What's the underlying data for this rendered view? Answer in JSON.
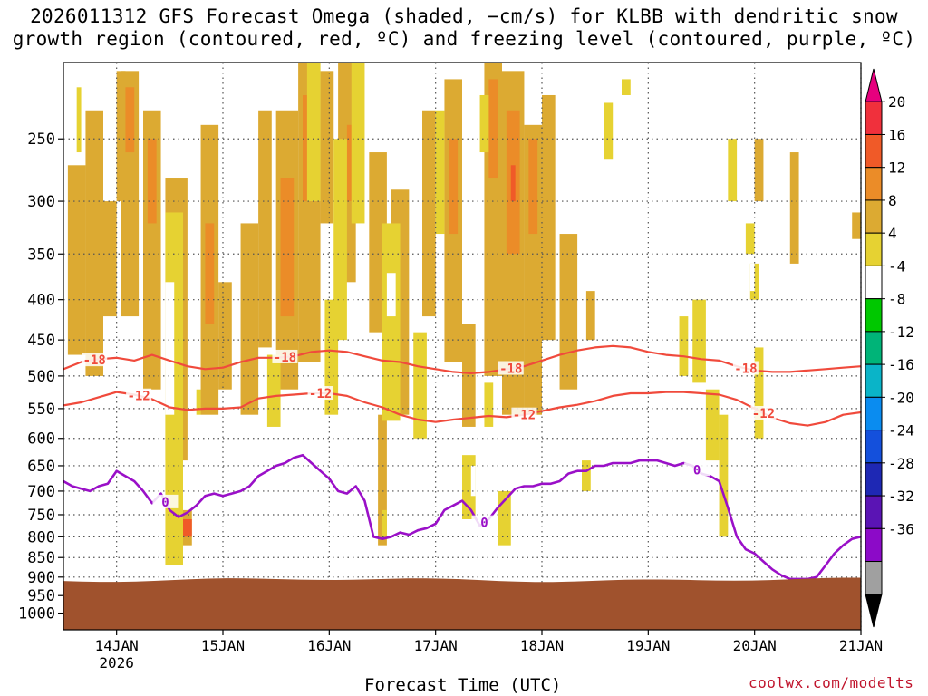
{
  "title": {
    "line1": "2026011312 GFS Forecast Omega (shaded, −cm/s) for KLBB with dendritic snow",
    "line2": "growth region (contoured, red, ºC) and freezing level (contoured, purple, ºC)"
  },
  "xlabel": "Forecast Time (UTC)",
  "credit": "coolwx.com/modelts",
  "colors": {
    "terrain": "#a0522d",
    "dsgz_contour": "#f04a3c",
    "freezing_contour": "#9a10c8",
    "grid": "#555555"
  },
  "chart_data": {
    "type": "heatmap",
    "title": "2026011312 GFS Forecast Omega (shaded, −cm/s) for KLBB with dendritic snow growth region (contoured, red, ºC) and freezing level (contoured, purple, ºC)",
    "xlabel": "Forecast Time (UTC)",
    "ylabel": "",
    "x_unit": "hours from 2026-01-13 12 UTC",
    "xlim": [
      0,
      180
    ],
    "y_scale": "log pressure (hPa), inverted",
    "ylim": [
      1050,
      200
    ],
    "x_ticks": [
      {
        "label": "14JAN",
        "sublabel": "2026",
        "x": 12
      },
      {
        "label": "15JAN",
        "sublabel": "",
        "x": 36
      },
      {
        "label": "16JAN",
        "sublabel": "",
        "x": 60
      },
      {
        "label": "17JAN",
        "sublabel": "",
        "x": 84
      },
      {
        "label": "18JAN",
        "sublabel": "",
        "x": 108
      },
      {
        "label": "19JAN",
        "sublabel": "",
        "x": 132
      },
      {
        "label": "20JAN",
        "sublabel": "",
        "x": 156
      },
      {
        "label": "21JAN",
        "sublabel": "",
        "x": 180
      }
    ],
    "y_ticks": [
      250,
      300,
      350,
      400,
      450,
      500,
      550,
      600,
      650,
      700,
      750,
      800,
      850,
      900,
      950,
      1000
    ],
    "grid": true,
    "colorbar": {
      "labels": [
        "20",
        "16",
        "12",
        "8",
        "4",
        "-4",
        "-8",
        "-12",
        "-16",
        "-20",
        "-24",
        "-28",
        "-32",
        "-36"
      ],
      "colors": [
        "#e6007e",
        "#f0303c",
        "#f05a28",
        "#eb8c28",
        "#dcaa32",
        "#e6d232",
        "#ffffff",
        "#00c800",
        "#00b478",
        "#0ab4c8",
        "#0a8cf0",
        "#1450dc",
        "#1e28b4",
        "#5a14b4",
        "#8c0ac8",
        "#a0a0a0",
        "#000000"
      ]
    },
    "surface_pressure_hpa": 905,
    "omega_cells": [
      {
        "x0": 1,
        "x1": 5,
        "p0": 270,
        "p1": 470,
        "c": 4
      },
      {
        "x0": 5,
        "x1": 9,
        "p0": 230,
        "p1": 500,
        "c": 4
      },
      {
        "x0": 9,
        "x1": 12,
        "p0": 300,
        "p1": 420,
        "c": 4
      },
      {
        "x0": 12,
        "x1": 14,
        "p0": 205,
        "p1": 300,
        "c": 4
      },
      {
        "x0": 13,
        "x1": 17,
        "p0": 205,
        "p1": 420,
        "c": 4
      },
      {
        "x0": 14,
        "x1": 16,
        "p0": 215,
        "p1": 260,
        "c": 3
      },
      {
        "x0": 18,
        "x1": 22,
        "p0": 230,
        "p1": 520,
        "c": 4
      },
      {
        "x0": 19,
        "x1": 21,
        "p0": 250,
        "p1": 320,
        "c": 3
      },
      {
        "x0": 23,
        "x1": 28,
        "p0": 280,
        "p1": 640,
        "c": 4
      },
      {
        "x0": 24,
        "x1": 27,
        "p0": 330,
        "p1": 450,
        "c": 3
      },
      {
        "x0": 27,
        "x1": 29,
        "p0": 740,
        "p1": 820,
        "c": 4
      },
      {
        "x0": 26,
        "x1": 29,
        "p0": 760,
        "p1": 800,
        "c": 2
      },
      {
        "x0": 31,
        "x1": 35,
        "p0": 240,
        "p1": 560,
        "c": 4
      },
      {
        "x0": 32,
        "x1": 34,
        "p0": 320,
        "p1": 430,
        "c": 3
      },
      {
        "x0": 35,
        "x1": 38,
        "p0": 380,
        "p1": 520,
        "c": 4
      },
      {
        "x0": 40,
        "x1": 44,
        "p0": 320,
        "p1": 560,
        "c": 4
      },
      {
        "x0": 44,
        "x1": 47,
        "p0": 230,
        "p1": 460,
        "c": 4
      },
      {
        "x0": 48,
        "x1": 53,
        "p0": 230,
        "p1": 520,
        "c": 4
      },
      {
        "x0": 49,
        "x1": 52,
        "p0": 280,
        "p1": 420,
        "c": 3
      },
      {
        "x0": 53,
        "x1": 58,
        "p0": 200,
        "p1": 480,
        "c": 4
      },
      {
        "x0": 54,
        "x1": 57,
        "p0": 220,
        "p1": 300,
        "c": 3
      },
      {
        "x0": 58,
        "x1": 61,
        "p0": 205,
        "p1": 320,
        "c": 4
      },
      {
        "x0": 62,
        "x1": 66,
        "p0": 200,
        "p1": 380,
        "c": 4
      },
      {
        "x0": 64,
        "x1": 65,
        "p0": 240,
        "p1": 300,
        "c": 3
      },
      {
        "x0": 69,
        "x1": 73,
        "p0": 260,
        "p1": 440,
        "c": 4
      },
      {
        "x0": 71,
        "x1": 73,
        "p0": 560,
        "p1": 820,
        "c": 4
      },
      {
        "x0": 74,
        "x1": 78,
        "p0": 290,
        "p1": 560,
        "c": 4
      },
      {
        "x0": 81,
        "x1": 84,
        "p0": 230,
        "p1": 420,
        "c": 4
      },
      {
        "x0": 86,
        "x1": 90,
        "p0": 210,
        "p1": 480,
        "c": 4
      },
      {
        "x0": 87,
        "x1": 89,
        "p0": 250,
        "p1": 330,
        "c": 3
      },
      {
        "x0": 90,
        "x1": 93,
        "p0": 430,
        "p1": 580,
        "c": 4
      },
      {
        "x0": 95,
        "x1": 99,
        "p0": 200,
        "p1": 500,
        "c": 4
      },
      {
        "x0": 96,
        "x1": 98,
        "p0": 210,
        "p1": 280,
        "c": 3
      },
      {
        "x0": 99,
        "x1": 104,
        "p0": 205,
        "p1": 560,
        "c": 4
      },
      {
        "x0": 100,
        "x1": 103,
        "p0": 230,
        "p1": 350,
        "c": 3
      },
      {
        "x0": 101,
        "x1": 102,
        "p0": 270,
        "p1": 300,
        "c": 2
      },
      {
        "x0": 104,
        "x1": 108,
        "p0": 240,
        "p1": 560,
        "c": 4
      },
      {
        "x0": 105,
        "x1": 107,
        "p0": 250,
        "p1": 330,
        "c": 3
      },
      {
        "x0": 108,
        "x1": 111,
        "p0": 220,
        "p1": 450,
        "c": 4
      },
      {
        "x0": 112,
        "x1": 116,
        "p0": 330,
        "p1": 520,
        "c": 4
      },
      {
        "x0": 118,
        "x1": 120,
        "p0": 390,
        "p1": 450,
        "c": 4
      },
      {
        "x0": 156,
        "x1": 158,
        "p0": 250,
        "p1": 300,
        "c": 4
      },
      {
        "x0": 164,
        "x1": 166,
        "p0": 260,
        "p1": 360,
        "c": 4
      },
      {
        "x0": 178,
        "x1": 180,
        "p0": 310,
        "p1": 335,
        "c": 4
      },
      {
        "x0": 3,
        "x1": 4,
        "p0": 215,
        "p1": 260,
        "c": 5
      },
      {
        "x0": 23,
        "x1": 27,
        "p0": 310,
        "p1": 870,
        "c": 5
      },
      {
        "x0": 23,
        "x1": 25,
        "p0": 380,
        "p1": 560,
        "c": 6
      },
      {
        "x0": 30,
        "x1": 31,
        "p0": 520,
        "p1": 560,
        "c": 5
      },
      {
        "x0": 46,
        "x1": 49,
        "p0": 470,
        "p1": 580,
        "c": 5
      },
      {
        "x0": 55,
        "x1": 58,
        "p0": 200,
        "p1": 300,
        "c": 5
      },
      {
        "x0": 59,
        "x1": 62,
        "p0": 400,
        "p1": 560,
        "c": 5
      },
      {
        "x0": 61,
        "x1": 64,
        "p0": 250,
        "p1": 450,
        "c": 5
      },
      {
        "x0": 65,
        "x1": 68,
        "p0": 200,
        "p1": 320,
        "c": 5
      },
      {
        "x0": 72,
        "x1": 76,
        "p0": 320,
        "p1": 570,
        "c": 5
      },
      {
        "x0": 73,
        "x1": 75,
        "p0": 370,
        "p1": 420,
        "c": 6
      },
      {
        "x0": 72,
        "x1": 73,
        "p0": 740,
        "p1": 800,
        "c": 5
      },
      {
        "x0": 79,
        "x1": 82,
        "p0": 440,
        "p1": 600,
        "c": 5
      },
      {
        "x0": 84,
        "x1": 86,
        "p0": 230,
        "p1": 330,
        "c": 5
      },
      {
        "x0": 90,
        "x1": 93,
        "p0": 630,
        "p1": 760,
        "c": 5
      },
      {
        "x0": 92,
        "x1": 93,
        "p0": 650,
        "p1": 710,
        "c": 6
      },
      {
        "x0": 94,
        "x1": 96,
        "p0": 220,
        "p1": 260,
        "c": 5
      },
      {
        "x0": 95,
        "x1": 97,
        "p0": 510,
        "p1": 580,
        "c": 5
      },
      {
        "x0": 98,
        "x1": 101,
        "p0": 700,
        "p1": 820,
        "c": 5
      },
      {
        "x0": 117,
        "x1": 119,
        "p0": 640,
        "p1": 700,
        "c": 5
      },
      {
        "x0": 122,
        "x1": 124,
        "p0": 225,
        "p1": 265,
        "c": 5
      },
      {
        "x0": 126,
        "x1": 128,
        "p0": 210,
        "p1": 220,
        "c": 5
      },
      {
        "x0": 139,
        "x1": 141,
        "p0": 420,
        "p1": 500,
        "c": 5
      },
      {
        "x0": 142,
        "x1": 145,
        "p0": 400,
        "p1": 510,
        "c": 5
      },
      {
        "x0": 145,
        "x1": 148,
        "p0": 520,
        "p1": 640,
        "c": 5
      },
      {
        "x0": 148,
        "x1": 150,
        "p0": 560,
        "p1": 800,
        "c": 5
      },
      {
        "x0": 150,
        "x1": 152,
        "p0": 250,
        "p1": 300,
        "c": 5
      },
      {
        "x0": 154,
        "x1": 156,
        "p0": 320,
        "p1": 350,
        "c": 5
      },
      {
        "x0": 155,
        "x1": 157,
        "p0": 360,
        "p1": 400,
        "c": 5
      },
      {
        "x0": 155,
        "x1": 156,
        "p0": 360,
        "p1": 390,
        "c": 6
      },
      {
        "x0": 156,
        "x1": 158,
        "p0": 460,
        "p1": 600,
        "c": 5
      }
    ],
    "series": [
      {
        "name": "-18",
        "role": "dendritic snow growth region",
        "label_x": [
          7,
          50,
          101,
          154
        ],
        "x": [
          0,
          4,
          8,
          12,
          16,
          20,
          24,
          28,
          32,
          36,
          40,
          44,
          48,
          52,
          56,
          60,
          64,
          68,
          72,
          76,
          80,
          84,
          88,
          92,
          96,
          100,
          104,
          108,
          112,
          116,
          120,
          124,
          128,
          132,
          136,
          140,
          144,
          148,
          152,
          156,
          160,
          164,
          168,
          172,
          176,
          180
        ],
        "p": [
          490,
          480,
          476,
          474,
          478,
          470,
          478,
          486,
          490,
          488,
          480,
          474,
          474,
          472,
          466,
          464,
          466,
          472,
          478,
          480,
          486,
          490,
          494,
          496,
          494,
          490,
          486,
          478,
          470,
          464,
          460,
          458,
          460,
          466,
          470,
          472,
          476,
          478,
          486,
          492,
          494,
          494,
          492,
          490,
          488,
          486
        ]
      },
      {
        "name": "-12",
        "role": "dendritic snow growth region",
        "label_x": [
          17,
          58,
          104,
          158
        ],
        "x": [
          0,
          4,
          8,
          12,
          16,
          20,
          24,
          28,
          32,
          36,
          40,
          44,
          48,
          52,
          56,
          60,
          64,
          68,
          72,
          76,
          80,
          84,
          88,
          92,
          96,
          100,
          104,
          108,
          112,
          116,
          120,
          124,
          128,
          132,
          136,
          140,
          144,
          148,
          152,
          156,
          160,
          164,
          168,
          172,
          176,
          180
        ],
        "p": [
          545,
          540,
          532,
          524,
          528,
          535,
          548,
          552,
          550,
          550,
          548,
          534,
          530,
          528,
          526,
          526,
          530,
          540,
          548,
          560,
          568,
          572,
          568,
          565,
          562,
          564,
          560,
          554,
          548,
          544,
          538,
          530,
          526,
          526,
          524,
          524,
          526,
          528,
          536,
          550,
          565,
          574,
          578,
          572,
          560,
          556
        ]
      },
      {
        "name": "0",
        "role": "freezing level",
        "label_x": [
          23,
          95,
          143
        ],
        "x": [
          0,
          2,
          4,
          6,
          8,
          10,
          12,
          14,
          16,
          18,
          20,
          22,
          24,
          26,
          28,
          30,
          32,
          34,
          36,
          38,
          40,
          42,
          44,
          46,
          48,
          50,
          52,
          54,
          56,
          58,
          60,
          62,
          64,
          66,
          68,
          70,
          72,
          74,
          76,
          78,
          80,
          82,
          84,
          86,
          88,
          90,
          92,
          94,
          96,
          98,
          100,
          102,
          104,
          106,
          108,
          110,
          112,
          114,
          116,
          118,
          120,
          122,
          124,
          126,
          128,
          130,
          132,
          134,
          136,
          138,
          140,
          142,
          144,
          146,
          148,
          150,
          152,
          154,
          156,
          158,
          160,
          162,
          164,
          166,
          168,
          170,
          172,
          174,
          176,
          178,
          180
        ],
        "p": [
          680,
          690,
          695,
          700,
          690,
          685,
          660,
          670,
          680,
          700,
          725,
          705,
          740,
          755,
          745,
          730,
          710,
          705,
          710,
          705,
          700,
          690,
          670,
          660,
          650,
          645,
          635,
          630,
          645,
          660,
          675,
          700,
          705,
          690,
          720,
          800,
          805,
          800,
          790,
          795,
          785,
          780,
          770,
          740,
          730,
          720,
          740,
          775,
          760,
          735,
          715,
          695,
          690,
          690,
          685,
          685,
          680,
          665,
          660,
          660,
          650,
          650,
          645,
          645,
          645,
          640,
          640,
          640,
          645,
          650,
          645,
          650,
          665,
          670,
          680,
          735,
          800,
          830,
          840,
          860,
          880,
          895,
          905,
          905,
          905,
          900,
          870,
          840,
          820,
          805,
          800
        ]
      }
    ]
  }
}
